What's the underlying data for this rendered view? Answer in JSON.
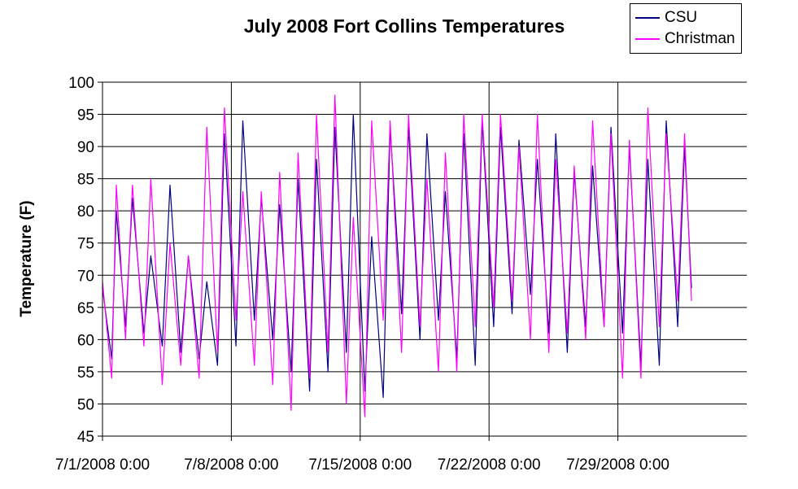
{
  "chart_data": {
    "type": "line",
    "title": "July 2008 Fort Collins Temperatures",
    "ylabel": "Temperature (F)",
    "xlabel": "",
    "ylim": [
      45,
      100
    ],
    "yticks": [
      45,
      50,
      55,
      60,
      65,
      70,
      75,
      80,
      85,
      90,
      95,
      100
    ],
    "xlim": [
      "7/1/2008 0:00",
      "8/5/2008 0:00"
    ],
    "xticks": [
      "7/1/2008 0:00",
      "7/8/2008 0:00",
      "7/15/2008 0:00",
      "7/22/2008 0:00",
      "7/29/2008 0:00"
    ],
    "grid": true,
    "legend_position": "top-right",
    "series": [
      {
        "name": "CSU",
        "color": "#000080",
        "x_format": "M/D/YYYY H:MM",
        "points": [
          [
            "7/1/2008 0:00",
            68
          ],
          [
            "7/1/2008 12:00",
            57
          ],
          [
            "7/1/2008 18:00",
            80
          ],
          [
            "7/2/2008 6:00",
            62
          ],
          [
            "7/2/2008 15:00",
            82
          ],
          [
            "7/3/2008 6:00",
            61
          ],
          [
            "7/3/2008 15:00",
            73
          ],
          [
            "7/4/2008 6:00",
            59
          ],
          [
            "7/4/2008 16:00",
            84
          ],
          [
            "7/5/2008 6:00",
            58
          ],
          [
            "7/5/2008 16:00",
            73
          ],
          [
            "7/6/2008 6:00",
            57
          ],
          [
            "7/6/2008 16:00",
            69
          ],
          [
            "7/7/2008 6:00",
            56
          ],
          [
            "7/7/2008 15:00",
            92
          ],
          [
            "7/8/2008 6:00",
            59
          ],
          [
            "7/8/2008 15:00",
            94
          ],
          [
            "7/9/2008 6:00",
            63
          ],
          [
            "7/9/2008 15:00",
            82
          ],
          [
            "7/10/2008 6:00",
            60
          ],
          [
            "7/10/2008 15:00",
            81
          ],
          [
            "7/11/2008 6:00",
            55
          ],
          [
            "7/11/2008 15:00",
            85
          ],
          [
            "7/12/2008 6:00",
            52
          ],
          [
            "7/12/2008 15:00",
            88
          ],
          [
            "7/13/2008 6:00",
            55
          ],
          [
            "7/13/2008 15:00",
            93
          ],
          [
            "7/14/2008 6:00",
            58
          ],
          [
            "7/14/2008 15:00",
            95
          ],
          [
            "7/15/2008 6:00",
            52
          ],
          [
            "7/15/2008 15:00",
            76
          ],
          [
            "7/16/2008 6:00",
            51
          ],
          [
            "7/16/2008 15:00",
            93
          ],
          [
            "7/17/2008 6:00",
            64
          ],
          [
            "7/17/2008 15:00",
            93
          ],
          [
            "7/18/2008 6:00",
            60
          ],
          [
            "7/18/2008 15:00",
            92
          ],
          [
            "7/19/2008 6:00",
            63
          ],
          [
            "7/19/2008 15:00",
            83
          ],
          [
            "7/20/2008 6:00",
            57
          ],
          [
            "7/20/2008 15:00",
            92
          ],
          [
            "7/21/2008 6:00",
            56
          ],
          [
            "7/21/2008 15:00",
            94
          ],
          [
            "7/22/2008 6:00",
            62
          ],
          [
            "7/22/2008 15:00",
            93
          ],
          [
            "7/23/2008 6:00",
            64
          ],
          [
            "7/23/2008 15:00",
            91
          ],
          [
            "7/24/2008 6:00",
            67
          ],
          [
            "7/24/2008 15:00",
            88
          ],
          [
            "7/25/2008 6:00",
            61
          ],
          [
            "7/25/2008 15:00",
            92
          ],
          [
            "7/26/2008 6:00",
            58
          ],
          [
            "7/26/2008 15:00",
            86
          ],
          [
            "7/27/2008 6:00",
            62
          ],
          [
            "7/27/2008 15:00",
            87
          ],
          [
            "7/28/2008 6:00",
            62
          ],
          [
            "7/28/2008 15:00",
            93
          ],
          [
            "7/29/2008 6:00",
            61
          ],
          [
            "7/29/2008 15:00",
            90
          ],
          [
            "7/30/2008 6:00",
            56
          ],
          [
            "7/30/2008 15:00",
            88
          ],
          [
            "7/31/2008 6:00",
            56
          ],
          [
            "7/31/2008 15:00",
            94
          ],
          [
            "8/1/2008 6:00",
            62
          ],
          [
            "8/1/2008 15:00",
            90
          ],
          [
            "8/2/2008 0:00",
            68
          ]
        ]
      },
      {
        "name": "Christman",
        "color": "#ff00ff",
        "x_format": "M/D/YYYY H:MM",
        "points": [
          [
            "7/1/2008 0:00",
            69
          ],
          [
            "7/1/2008 12:00",
            54
          ],
          [
            "7/1/2008 18:00",
            84
          ],
          [
            "7/2/2008 6:00",
            60
          ],
          [
            "7/2/2008 15:00",
            84
          ],
          [
            "7/3/2008 6:00",
            59
          ],
          [
            "7/3/2008 15:00",
            85
          ],
          [
            "7/4/2008 6:00",
            53
          ],
          [
            "7/4/2008 16:00",
            75
          ],
          [
            "7/5/2008 6:00",
            56
          ],
          [
            "7/5/2008 16:00",
            73
          ],
          [
            "7/6/2008 6:00",
            54
          ],
          [
            "7/6/2008 16:00",
            93
          ],
          [
            "7/7/2008 6:00",
            58
          ],
          [
            "7/7/2008 15:00",
            96
          ],
          [
            "7/8/2008 6:00",
            63
          ],
          [
            "7/8/2008 15:00",
            83
          ],
          [
            "7/9/2008 6:00",
            56
          ],
          [
            "7/9/2008 15:00",
            83
          ],
          [
            "7/10/2008 6:00",
            53
          ],
          [
            "7/10/2008 15:00",
            86
          ],
          [
            "7/11/2008 6:00",
            49
          ],
          [
            "7/11/2008 15:00",
            89
          ],
          [
            "7/12/2008 6:00",
            54
          ],
          [
            "7/12/2008 15:00",
            95
          ],
          [
            "7/13/2008 6:00",
            58
          ],
          [
            "7/13/2008 15:00",
            98
          ],
          [
            "7/14/2008 6:00",
            50
          ],
          [
            "7/14/2008 15:00",
            79
          ],
          [
            "7/15/2008 6:00",
            48
          ],
          [
            "7/15/2008 15:00",
            94
          ],
          [
            "7/16/2008 6:00",
            63
          ],
          [
            "7/16/2008 15:00",
            94
          ],
          [
            "7/17/2008 6:00",
            58
          ],
          [
            "7/17/2008 15:00",
            95
          ],
          [
            "7/18/2008 6:00",
            62
          ],
          [
            "7/18/2008 15:00",
            85
          ],
          [
            "7/19/2008 6:00",
            55
          ],
          [
            "7/19/2008 15:00",
            89
          ],
          [
            "7/20/2008 6:00",
            55
          ],
          [
            "7/20/2008 15:00",
            95
          ],
          [
            "7/21/2008 6:00",
            62
          ],
          [
            "7/21/2008 15:00",
            95
          ],
          [
            "7/22/2008 6:00",
            65
          ],
          [
            "7/22/2008 15:00",
            95
          ],
          [
            "7/23/2008 6:00",
            66
          ],
          [
            "7/23/2008 15:00",
            90
          ],
          [
            "7/24/2008 6:00",
            60
          ],
          [
            "7/24/2008 15:00",
            95
          ],
          [
            "7/25/2008 6:00",
            58
          ],
          [
            "7/25/2008 15:00",
            88
          ],
          [
            "7/26/2008 6:00",
            61
          ],
          [
            "7/26/2008 15:00",
            87
          ],
          [
            "7/27/2008 6:00",
            60
          ],
          [
            "7/27/2008 15:00",
            94
          ],
          [
            "7/28/2008 6:00",
            62
          ],
          [
            "7/28/2008 15:00",
            92
          ],
          [
            "7/29/2008 6:00",
            54
          ],
          [
            "7/29/2008 15:00",
            91
          ],
          [
            "7/30/2008 6:00",
            54
          ],
          [
            "7/30/2008 15:00",
            96
          ],
          [
            "7/31/2008 6:00",
            62
          ],
          [
            "7/31/2008 15:00",
            92
          ],
          [
            "8/1/2008 6:00",
            66
          ],
          [
            "8/1/2008 15:00",
            92
          ],
          [
            "8/2/2008 0:00",
            66
          ]
        ]
      }
    ]
  }
}
